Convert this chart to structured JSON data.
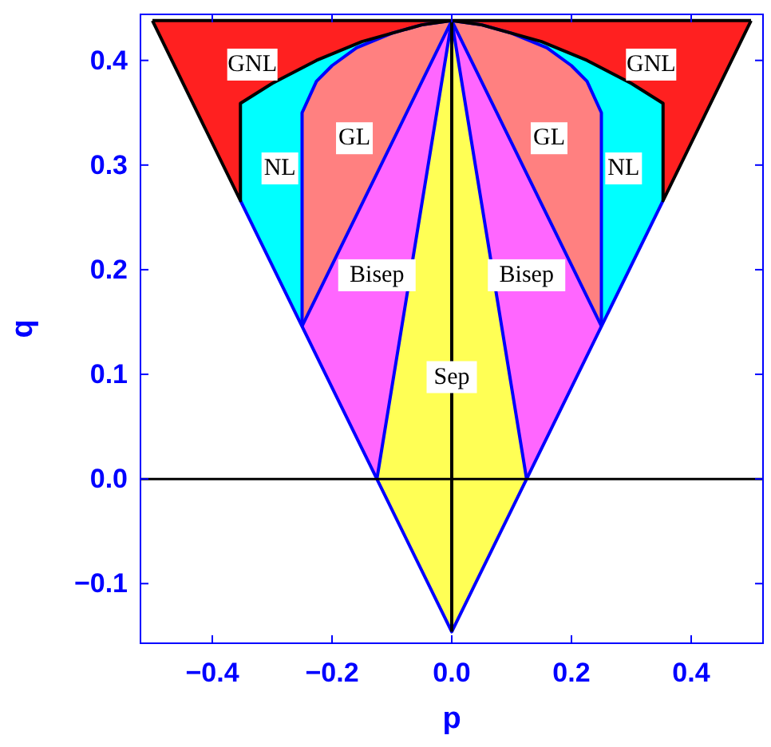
{
  "chart_data": {
    "type": "area",
    "xlabel": "p",
    "ylabel": "q",
    "xlim": [
      -0.52,
      0.52
    ],
    "ylim": [
      -0.157,
      0.444
    ],
    "xticks": [
      {
        "value": -0.4,
        "label": "−0.4"
      },
      {
        "value": -0.2,
        "label": "−0.2"
      },
      {
        "value": 0,
        "label": "0.0"
      },
      {
        "value": 0.2,
        "label": "0.2"
      },
      {
        "value": 0.4,
        "label": "0.4"
      }
    ],
    "yticks": [
      {
        "value": -0.1,
        "label": "−0.1"
      },
      {
        "value": 0,
        "label": "0.0"
      },
      {
        "value": 0.1,
        "label": "0.1"
      },
      {
        "value": 0.2,
        "label": "0.2"
      },
      {
        "value": 0.3,
        "label": "0.3"
      },
      {
        "value": 0.4,
        "label": "0.4"
      }
    ],
    "series": [
      {
        "name": "GNL",
        "color": "#ff2020",
        "x": [
          -0.5,
          0,
          -0.05,
          -0.1,
          -0.15,
          -0.226,
          -0.3,
          -0.353,
          -0.353
        ],
        "values": [
          0.438,
          0.438,
          0.434,
          0.426,
          0.418,
          0.4,
          0.378,
          0.359,
          0.266
        ]
      },
      {
        "name": "GNL",
        "color": "#ff2020",
        "x": [
          0.5,
          0,
          0.05,
          0.1,
          0.15,
          0.226,
          0.3,
          0.353,
          0.353
        ],
        "values": [
          0.438,
          0.438,
          0.434,
          0.426,
          0.418,
          0.4,
          0.378,
          0.359,
          0.266
        ]
      },
      {
        "name": "NL",
        "color": "#00ffff",
        "x": [
          -0.25,
          -0.353,
          -0.353,
          -0.3,
          -0.226,
          -0.15,
          -0.1,
          -0.05,
          0,
          -0.05,
          -0.1,
          -0.159,
          -0.2,
          -0.226,
          -0.25
        ],
        "values": [
          0.146,
          0.266,
          0.359,
          0.378,
          0.4,
          0.418,
          0.426,
          0.434,
          0.438,
          0.434,
          0.426,
          0.412,
          0.395,
          0.38,
          0.35
        ]
      },
      {
        "name": "NL",
        "color": "#00ffff",
        "x": [
          0.25,
          0.353,
          0.353,
          0.3,
          0.226,
          0.15,
          0.1,
          0.05,
          0,
          0.05,
          0.1,
          0.159,
          0.2,
          0.226,
          0.25
        ],
        "values": [
          0.146,
          0.266,
          0.359,
          0.378,
          0.4,
          0.418,
          0.426,
          0.434,
          0.438,
          0.434,
          0.426,
          0.412,
          0.395,
          0.38,
          0.35
        ]
      },
      {
        "name": "GL",
        "color": "#ff8080",
        "x": [
          0,
          -0.25,
          -0.25,
          -0.226,
          -0.2,
          -0.159,
          -0.1,
          -0.05
        ],
        "values": [
          0.438,
          0.146,
          0.35,
          0.38,
          0.395,
          0.412,
          0.426,
          0.434
        ]
      },
      {
        "name": "GL",
        "color": "#ff8080",
        "x": [
          0,
          0.25,
          0.25,
          0.226,
          0.2,
          0.159,
          0.1,
          0.05
        ],
        "values": [
          0.438,
          0.146,
          0.35,
          0.38,
          0.395,
          0.412,
          0.426,
          0.434
        ]
      },
      {
        "name": "Bisep",
        "color": "#ff66ff",
        "x": [
          0,
          -0.125,
          -0.25
        ],
        "values": [
          0.438,
          0,
          0.146
        ]
      },
      {
        "name": "Bisep",
        "color": "#ff66ff",
        "x": [
          0,
          0.125,
          0.25
        ],
        "values": [
          0.438,
          0,
          0.146
        ]
      },
      {
        "name": "Sep",
        "color": "#ffff55",
        "x": [
          0,
          -0.125,
          0,
          0.125
        ],
        "values": [
          0.438,
          0,
          -0.146,
          0
        ]
      },
      {
        "type": "line",
        "color": "#0000ff",
        "x": [
          -0.353,
          0,
          0.353
        ],
        "values": [
          0.266,
          -0.146,
          0.266
        ]
      },
      {
        "type": "line",
        "color": "#0000ff",
        "x": [
          -0.25,
          -0.25,
          -0.226,
          -0.2,
          -0.159,
          -0.1,
          -0.05,
          0,
          0.05,
          0.1,
          0.159,
          0.2,
          0.226,
          0.25,
          0.25
        ],
        "values": [
          0.146,
          0.35,
          0.38,
          0.395,
          0.412,
          0.426,
          0.434,
          0.438,
          0.434,
          0.426,
          0.412,
          0.395,
          0.38,
          0.35,
          0.146
        ]
      },
      {
        "type": "line",
        "color": "#0000ff",
        "x": [
          -0.25,
          0,
          0.25
        ],
        "values": [
          0.146,
          0.438,
          0.146
        ]
      },
      {
        "type": "line",
        "color": "#0000ff",
        "x": [
          -0.125,
          0,
          0.125
        ],
        "values": [
          0,
          0.438,
          0
        ]
      },
      {
        "type": "line",
        "color": "#000000",
        "x": [
          -0.5,
          -0.353,
          -0.353,
          -0.3,
          -0.226,
          -0.15,
          -0.1,
          -0.05,
          0,
          0.05,
          0.1,
          0.15,
          0.226,
          0.3,
          0.353,
          0.353,
          0.5
        ],
        "values": [
          0.438,
          0.266,
          0.359,
          0.378,
          0.4,
          0.418,
          0.426,
          0.434,
          0.438,
          0.434,
          0.426,
          0.418,
          0.4,
          0.378,
          0.359,
          0.266,
          0.438
        ]
      },
      {
        "type": "line",
        "color": "#000000",
        "x": [
          -0.5,
          0.5
        ],
        "values": [
          0.438,
          0.438
        ]
      },
      {
        "type": "line",
        "color": "#000000",
        "x": [
          0,
          0
        ],
        "values": [
          -0.146,
          0.438
        ]
      }
    ],
    "ref_lines": [
      {
        "axis": "y",
        "value": 0,
        "color": "#000000"
      }
    ]
  }
}
